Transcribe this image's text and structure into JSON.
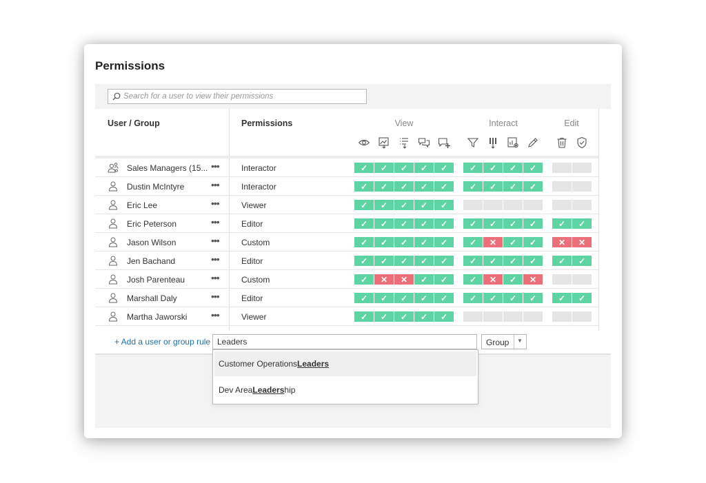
{
  "dialog": {
    "title": "Permissions"
  },
  "search": {
    "placeholder": "Search for a user to view their permissions"
  },
  "columns": {
    "user_group": "User / Group",
    "permissions": "Permissions"
  },
  "groups": {
    "view": "View",
    "interact": "Interact",
    "edit": "Edit"
  },
  "capability_icons": {
    "view": [
      "eye-icon",
      "image-download-icon",
      "list-download-icon",
      "comments-icon",
      "add-comment-icon"
    ],
    "interact": [
      "filter-icon",
      "data-download-icon",
      "chart-settings-icon",
      "pencil-icon"
    ],
    "edit": [
      "trash-icon",
      "shield-check-icon"
    ]
  },
  "colors": {
    "allow": "#5ed4a3",
    "deny": "#ec6e79",
    "unset": "#e5e5e5",
    "link": "#1f6fa8"
  },
  "rows": [
    {
      "name": "Sales Managers (15...",
      "type": "group",
      "role": "Interactor",
      "view": [
        "allow",
        "allow",
        "allow",
        "allow",
        "allow"
      ],
      "interact": [
        "allow",
        "allow",
        "allow",
        "allow"
      ],
      "edit": [
        "none",
        "none"
      ]
    },
    {
      "name": "Dustin McIntyre",
      "type": "user",
      "role": "Interactor",
      "view": [
        "allow",
        "allow",
        "allow",
        "allow",
        "allow"
      ],
      "interact": [
        "allow",
        "allow",
        "allow",
        "allow"
      ],
      "edit": [
        "none",
        "none"
      ]
    },
    {
      "name": "Eric Lee",
      "type": "user",
      "role": "Viewer",
      "view": [
        "allow",
        "allow",
        "allow",
        "allow",
        "allow"
      ],
      "interact": [
        "none",
        "none",
        "none",
        "none"
      ],
      "edit": [
        "none",
        "none"
      ]
    },
    {
      "name": "Eric Peterson",
      "type": "user",
      "role": "Editor",
      "view": [
        "allow",
        "allow",
        "allow",
        "allow",
        "allow"
      ],
      "interact": [
        "allow",
        "allow",
        "allow",
        "allow"
      ],
      "edit": [
        "allow",
        "allow"
      ]
    },
    {
      "name": "Jason Wilson",
      "type": "user",
      "role": "Custom",
      "view": [
        "allow",
        "allow",
        "allow",
        "allow",
        "allow"
      ],
      "interact": [
        "allow",
        "deny",
        "allow",
        "allow"
      ],
      "edit": [
        "deny",
        "deny"
      ]
    },
    {
      "name": "Jen Bachand",
      "type": "user",
      "role": "Editor",
      "view": [
        "allow",
        "allow",
        "allow",
        "allow",
        "allow"
      ],
      "interact": [
        "allow",
        "allow",
        "allow",
        "allow"
      ],
      "edit": [
        "allow",
        "allow"
      ]
    },
    {
      "name": "Josh Parenteau",
      "type": "user",
      "role": "Custom",
      "view": [
        "allow",
        "deny",
        "deny",
        "allow",
        "allow"
      ],
      "interact": [
        "allow",
        "deny",
        "allow",
        "deny"
      ],
      "edit": [
        "none",
        "none"
      ]
    },
    {
      "name": "Marshall Daly",
      "type": "user",
      "role": "Editor",
      "view": [
        "allow",
        "allow",
        "allow",
        "allow",
        "allow"
      ],
      "interact": [
        "allow",
        "allow",
        "allow",
        "allow"
      ],
      "edit": [
        "allow",
        "allow"
      ]
    },
    {
      "name": "Martha Jaworski",
      "type": "user",
      "role": "Viewer",
      "view": [
        "allow",
        "allow",
        "allow",
        "allow",
        "allow"
      ],
      "interact": [
        "none",
        "none",
        "none",
        "none"
      ],
      "edit": [
        "none",
        "none"
      ]
    }
  ],
  "add_rule": {
    "link_label": "+ Add a user or group rule",
    "input_value": "Leaders",
    "type_value": "Group"
  },
  "suggestions": [
    {
      "prefix": "Customer Operations ",
      "match": "Leaders",
      "suffix": ""
    },
    {
      "prefix": "Dev Area ",
      "match": "Leaders",
      "suffix": "hip"
    }
  ]
}
